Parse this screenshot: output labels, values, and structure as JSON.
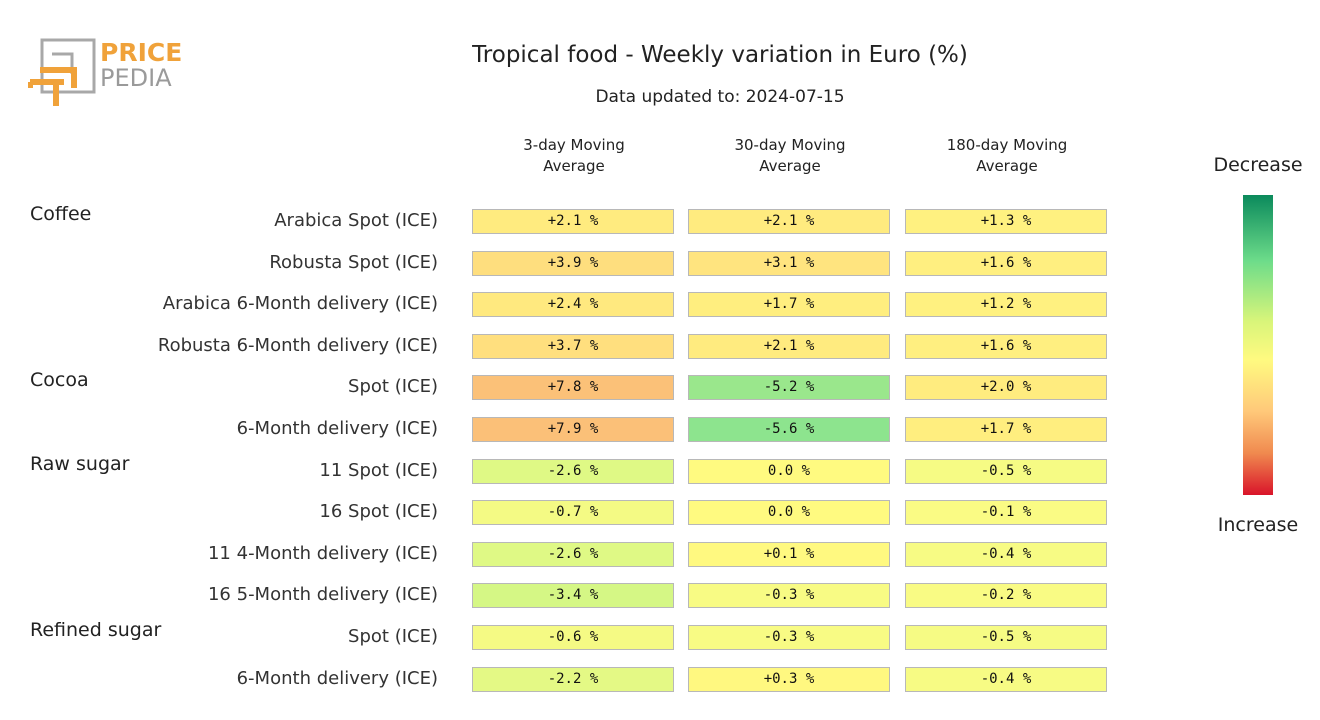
{
  "logo": {
    "line1": "PRICE",
    "line2": "PEDIA"
  },
  "colors": {
    "logo_orange": "#f0a23a",
    "logo_gray": "#9a9a9a",
    "cell_border": "#b8b8b8"
  },
  "chart_data": {
    "type": "table",
    "title": "Tropical food - Weekly variation in Euro (%)",
    "subtitle": "Data updated to: 2024-07-15",
    "columns": [
      "3-day Moving\nAverage",
      "30-day Moving\nAverage",
      "180-day Moving\nAverage"
    ],
    "legend": {
      "top": "Decrease",
      "bottom": "Increase"
    },
    "groups": [
      {
        "name": "Coffee",
        "rows": [
          {
            "label": "Arabica Spot (ICE)",
            "values": [
              2.1,
              2.1,
              1.3
            ],
            "text": [
              "+2.1 %",
              "+2.1 %",
              "+1.3 %"
            ]
          },
          {
            "label": "Robusta Spot (ICE)",
            "values": [
              3.9,
              3.1,
              1.6
            ],
            "text": [
              "+3.9 %",
              "+3.1 %",
              "+1.6 %"
            ]
          },
          {
            "label": "Arabica 6-Month delivery (ICE)",
            "values": [
              2.4,
              1.7,
              1.2
            ],
            "text": [
              "+2.4 %",
              "+1.7 %",
              "+1.2 %"
            ]
          },
          {
            "label": "Robusta 6-Month delivery (ICE)",
            "values": [
              3.7,
              2.1,
              1.6
            ],
            "text": [
              "+3.7 %",
              "+2.1 %",
              "+1.6 %"
            ]
          }
        ]
      },
      {
        "name": "Cocoa",
        "rows": [
          {
            "label": "Spot (ICE)",
            "values": [
              7.8,
              -5.2,
              2.0
            ],
            "text": [
              "+7.8 %",
              "-5.2 %",
              "+2.0 %"
            ]
          },
          {
            "label": "6-Month delivery (ICE)",
            "values": [
              7.9,
              -5.6,
              1.7
            ],
            "text": [
              "+7.9 %",
              "-5.6 %",
              "+1.7 %"
            ]
          }
        ]
      },
      {
        "name": "Raw sugar",
        "rows": [
          {
            "label": "11 Spot (ICE)",
            "values": [
              -2.6,
              0.0,
              -0.5
            ],
            "text": [
              "-2.6 %",
              "0.0 %",
              "-0.5 %"
            ]
          },
          {
            "label": "16 Spot (ICE)",
            "values": [
              -0.7,
              0.0,
              -0.1
            ],
            "text": [
              "-0.7 %",
              "0.0 %",
              "-0.1 %"
            ]
          },
          {
            "label": "11 4-Month delivery (ICE)",
            "values": [
              -2.6,
              0.1,
              -0.4
            ],
            "text": [
              "-2.6 %",
              "+0.1 %",
              "-0.4 %"
            ]
          },
          {
            "label": "16 5-Month delivery (ICE)",
            "values": [
              -3.4,
              -0.3,
              -0.2
            ],
            "text": [
              "-3.4 %",
              "-0.3 %",
              "-0.2 %"
            ]
          }
        ]
      },
      {
        "name": "Refined sugar",
        "rows": [
          {
            "label": "Spot (ICE)",
            "values": [
              -0.6,
              -0.3,
              -0.5
            ],
            "text": [
              "-0.6 %",
              "-0.3 %",
              "-0.5 %"
            ]
          },
          {
            "label": "6-Month delivery (ICE)",
            "values": [
              -2.2,
              0.3,
              -0.4
            ],
            "text": [
              "-2.2 %",
              "+0.3 %",
              "-0.4 %"
            ]
          }
        ]
      }
    ]
  }
}
